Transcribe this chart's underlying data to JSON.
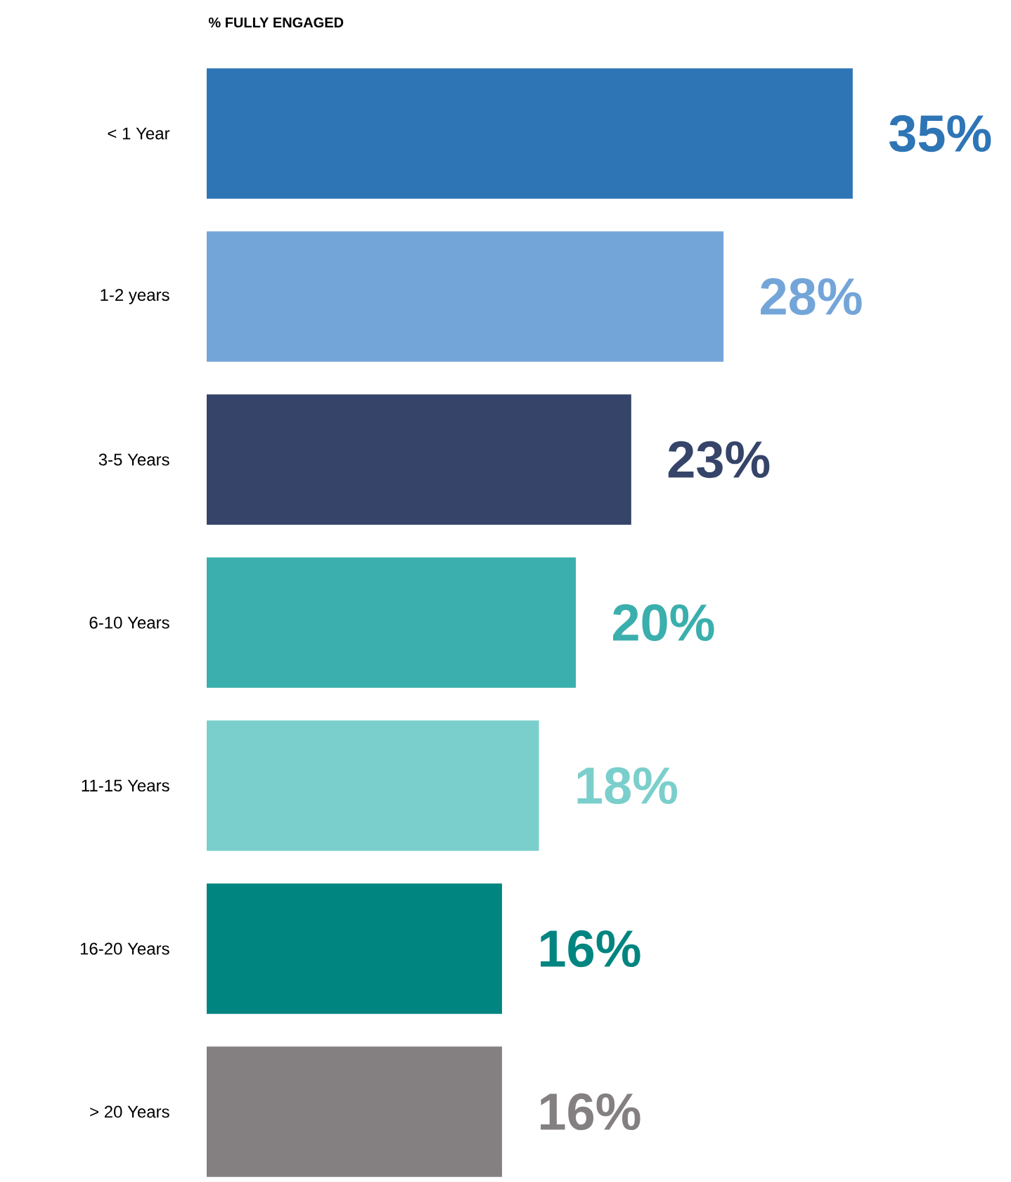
{
  "chart_data": {
    "type": "bar",
    "orientation": "horizontal",
    "title": "% FULLY ENGAGED",
    "categories": [
      "< 1 Year",
      "1-2 years",
      "3-5 Years",
      "6-10 Years",
      "11-15 Years",
      "16-20 Years",
      "> 20 Years"
    ],
    "values": [
      35,
      28,
      23,
      20,
      18,
      16,
      16
    ],
    "value_labels": [
      "35%",
      "28%",
      "23%",
      "20%",
      "18%",
      "16%",
      "16%"
    ],
    "colors": [
      "#2e75b6",
      "#74a5d9",
      "#354468",
      "#3aafad",
      "#7acfcc",
      "#008580",
      "#847f81"
    ],
    "data_labels": false
  }
}
